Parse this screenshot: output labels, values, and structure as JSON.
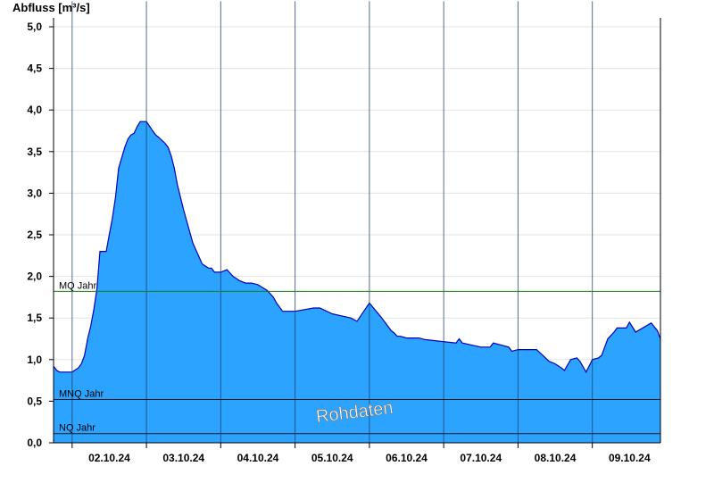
{
  "chart_data": {
    "type": "area",
    "ylabel": "Abfluss [m³/s]",
    "ylim": [
      0,
      5.2
    ],
    "yticks": [
      "0,0",
      "0,5",
      "1,0",
      "1,5",
      "2,0",
      "2,5",
      "3,0",
      "3,5",
      "4,0",
      "4,5",
      "5,0"
    ],
    "xlim": [
      "2024-10-01T18:00",
      "2024-10-09T22:00"
    ],
    "xtick_labels": [
      "02.10.24",
      "03.10.24",
      "04.10.24",
      "05.10.24",
      "06.10.24",
      "07.10.24",
      "08.10.24",
      "09.10.24"
    ],
    "grid": true,
    "watermark": "Rohdaten",
    "fill_color": "#2ba3ff",
    "line_color": "#0000b4",
    "reference_lines": [
      {
        "label": "MQ Jahr",
        "value": 1.82,
        "color": "#1a7a1a"
      },
      {
        "label": "MNQ Jahr",
        "value": 0.52,
        "color": "#1a1a1a"
      },
      {
        "label": "NQ Jahr",
        "value": 0.11,
        "color": "#1a1a1a"
      }
    ],
    "series": [
      {
        "x": [
          "2024-10-01T18:00",
          "2024-10-01T19:00",
          "2024-10-01T20:00",
          "2024-10-01T22:00",
          "2024-10-02T00:00",
          "2024-10-02T02:00",
          "2024-10-02T03:00",
          "2024-10-02T04:00",
          "2024-10-02T05:00",
          "2024-10-02T06:00",
          "2024-10-02T07:00",
          "2024-10-02T08:00",
          "2024-10-02T09:00",
          "2024-10-02T10:00",
          "2024-10-02T11:00",
          "2024-10-02T12:00",
          "2024-10-02T13:00",
          "2024-10-02T14:00",
          "2024-10-02T15:00",
          "2024-10-02T17:00",
          "2024-10-02T18:00",
          "2024-10-02T19:00",
          "2024-10-02T20:00",
          "2024-10-02T21:00",
          "2024-10-02T22:00",
          "2024-10-03T00:00",
          "2024-10-03T02:00",
          "2024-10-03T03:00",
          "2024-10-03T04:00",
          "2024-10-03T06:00",
          "2024-10-03T07:00",
          "2024-10-03T08:00",
          "2024-10-03T09:00",
          "2024-10-03T10:00",
          "2024-10-03T12:00",
          "2024-10-03T15:00",
          "2024-10-03T18:00",
          "2024-10-03T20:00",
          "2024-10-03T21:00",
          "2024-10-03T22:00",
          "2024-10-04T00:00",
          "2024-10-04T02:00",
          "2024-10-04T04:00",
          "2024-10-04T06:00",
          "2024-10-04T08:00",
          "2024-10-04T10:00",
          "2024-10-04T12:00",
          "2024-10-04T15:00",
          "2024-10-04T17:00",
          "2024-10-04T18:00",
          "2024-10-04T20:00",
          "2024-10-05T00:00",
          "2024-10-05T06:00",
          "2024-10-05T08:00",
          "2024-10-05T12:00",
          "2024-10-05T18:00",
          "2024-10-05T20:00",
          "2024-10-06T00:00",
          "2024-10-06T04:00",
          "2024-10-06T06:00",
          "2024-10-06T07:00",
          "2024-10-06T08:00",
          "2024-10-06T09:00",
          "2024-10-06T10:00",
          "2024-10-06T12:00",
          "2024-10-06T16:00",
          "2024-10-06T18:00",
          "2024-10-07T04:00",
          "2024-10-07T05:00",
          "2024-10-07T06:00",
          "2024-10-07T12:00",
          "2024-10-07T15:00",
          "2024-10-07T16:00",
          "2024-10-07T21:00",
          "2024-10-07T22:00",
          "2024-10-08T00:00",
          "2024-10-08T06:00",
          "2024-10-08T08:00",
          "2024-10-08T10:00",
          "2024-10-08T12:00",
          "2024-10-08T14:00",
          "2024-10-08T15:00",
          "2024-10-08T17:00",
          "2024-10-08T19:00",
          "2024-10-08T20:00",
          "2024-10-08T22:00",
          "2024-10-09T00:00",
          "2024-10-09T02:00",
          "2024-10-09T03:00",
          "2024-10-09T05:00",
          "2024-10-09T07:00",
          "2024-10-09T08:00",
          "2024-10-09T11:00",
          "2024-10-09T12:00",
          "2024-10-09T14:00",
          "2024-10-09T19:00",
          "2024-10-09T21:00",
          "2024-10-09T22:00"
        ],
        "y": [
          0.92,
          0.87,
          0.85,
          0.85,
          0.85,
          0.9,
          0.95,
          1.05,
          1.25,
          1.4,
          1.6,
          1.85,
          2.3,
          2.3,
          2.3,
          2.5,
          2.7,
          2.95,
          3.3,
          3.55,
          3.65,
          3.7,
          3.72,
          3.8,
          3.86,
          3.86,
          3.75,
          3.7,
          3.67,
          3.6,
          3.55,
          3.45,
          3.3,
          3.1,
          2.8,
          2.4,
          2.15,
          2.1,
          2.1,
          2.05,
          2.05,
          2.08,
          2.0,
          1.95,
          1.92,
          1.92,
          1.9,
          1.83,
          1.75,
          1.68,
          1.58,
          1.58,
          1.62,
          1.62,
          1.55,
          1.5,
          1.46,
          1.68,
          1.5,
          1.4,
          1.35,
          1.32,
          1.28,
          1.28,
          1.26,
          1.26,
          1.24,
          1.2,
          1.25,
          1.2,
          1.15,
          1.15,
          1.2,
          1.15,
          1.1,
          1.12,
          1.12,
          1.05,
          0.98,
          0.95,
          0.9,
          0.87,
          1.0,
          1.02,
          0.98,
          0.85,
          1.0,
          1.02,
          1.05,
          1.25,
          1.33,
          1.38,
          1.38,
          1.45,
          1.33,
          1.44,
          1.35,
          1.25
        ]
      }
    ]
  }
}
